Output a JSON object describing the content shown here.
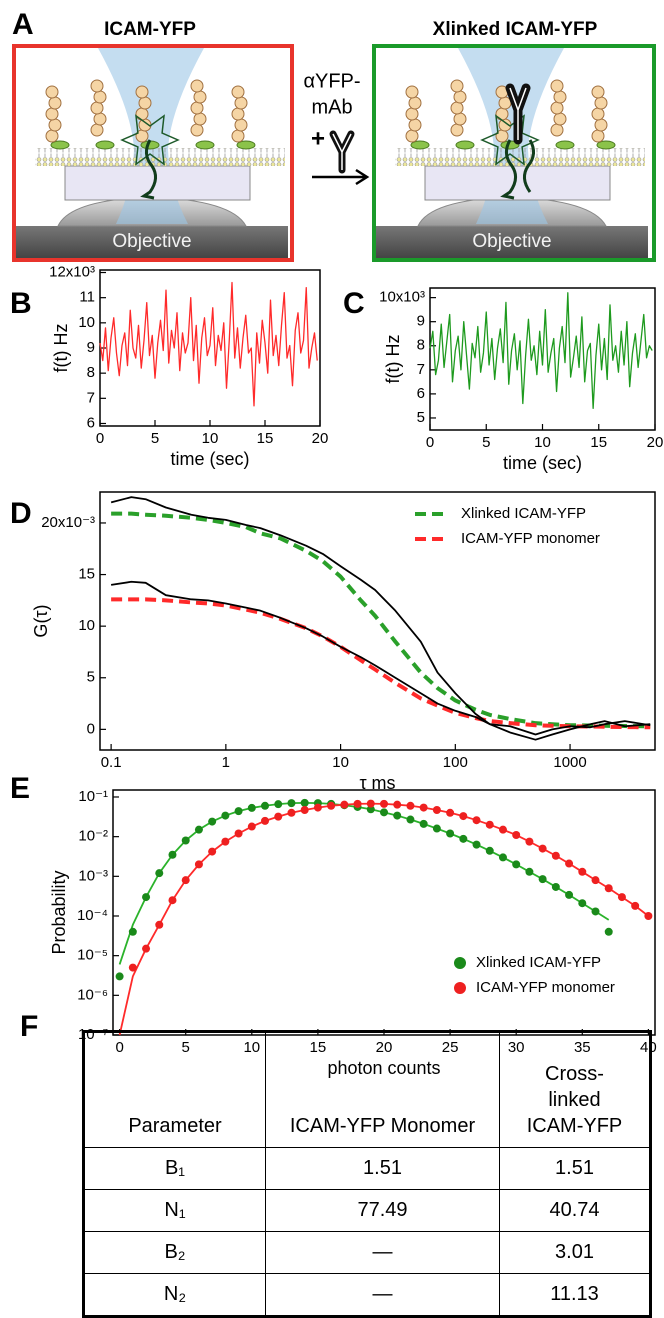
{
  "diagram": {
    "panel": "A",
    "left_title": "ICAM-YFP",
    "right_title": "Xlinked ICAM-YFP",
    "reagent_line1": "αYFP-",
    "reagent_line2": "mAb",
    "plus": "+",
    "left_objective": "Objective",
    "right_objective": "Objective"
  },
  "chart_data": [
    {
      "type": "line",
      "panel": "B",
      "xlabel": "time (sec)",
      "ylabel": "f(t) Hz",
      "x": [
        0,
        0.25,
        0.5,
        0.75,
        1,
        1.25,
        1.5,
        1.75,
        2,
        2.25,
        2.5,
        2.75,
        3,
        3.25,
        3.5,
        3.75,
        4,
        4.25,
        4.5,
        4.75,
        5,
        5.25,
        5.5,
        5.75,
        6,
        6.25,
        6.5,
        6.75,
        7,
        7.25,
        7.5,
        7.75,
        8,
        8.25,
        8.5,
        8.75,
        9,
        9.25,
        9.5,
        9.75,
        10,
        10.25,
        10.5,
        10.75,
        11,
        11.25,
        11.5,
        11.75,
        12,
        12.25,
        12.5,
        12.75,
        13,
        13.25,
        13.5,
        13.75,
        14,
        14.25,
        14.5,
        14.75,
        15,
        15.25,
        15.5,
        15.75,
        16,
        16.25,
        16.5,
        16.75,
        17,
        17.25,
        17.5,
        17.75,
        18,
        18.25,
        18.5,
        18.75,
        19,
        19.25,
        19.5,
        19.75
      ],
      "series": [
        {
          "color": "#ff2a2a",
          "style": "line",
          "values": [
            9.2,
            8.5,
            9.8,
            8.1,
            9.4,
            10.2,
            8.8,
            7.9,
            9.1,
            9.6,
            8.3,
            10.5,
            9,
            8.6,
            9.9,
            8.2,
            9.3,
            10.8,
            8.7,
            9.5,
            7.8,
            9.2,
            10.1,
            8.9,
            11.3,
            8.4,
            9.7,
            9,
            10.4,
            8.1,
            9.6,
            8.8,
            9.2,
            11,
            8.5,
            9.9,
            7.6,
            9.4,
            10.2,
            8.7,
            9.1,
            10.6,
            8.3,
            9.5,
            8.9,
            10,
            7.4,
            9.3,
            11.6,
            8.6,
            9.8,
            8.2,
            9.4,
            10.3,
            8.8,
            9,
            6.7,
            9.6,
            8.4,
            10.1,
            9.2,
            8,
            10.9,
            8.7,
            9.5,
            8.3,
            9.9,
            11.2,
            8.6,
            9.1,
            7.5,
            9.7,
            10.4,
            8.8,
            9.3,
            11.4,
            8.2,
            9,
            9.6,
            8.5
          ]
        }
      ],
      "xlim": [
        0,
        20
      ],
      "ylim": [
        5.9,
        12.1
      ],
      "xticks": [
        0,
        5,
        10,
        15,
        20
      ],
      "yticks": [
        6,
        7,
        8,
        9,
        10,
        11,
        {
          "value": 12,
          "label": "12x10³"
        }
      ]
    },
    {
      "type": "line",
      "panel": "C",
      "xlabel": "time (sec)",
      "ylabel": "f(t) Hz",
      "x": [
        0,
        0.25,
        0.5,
        0.75,
        1,
        1.25,
        1.5,
        1.75,
        2,
        2.25,
        2.5,
        2.75,
        3,
        3.25,
        3.5,
        3.75,
        4,
        4.25,
        4.5,
        4.75,
        5,
        5.25,
        5.5,
        5.75,
        6,
        6.25,
        6.5,
        6.75,
        7,
        7.25,
        7.5,
        7.75,
        8,
        8.25,
        8.5,
        8.75,
        9,
        9.25,
        9.5,
        9.75,
        10,
        10.25,
        10.5,
        10.75,
        11,
        11.25,
        11.5,
        11.75,
        12,
        12.25,
        12.5,
        12.75,
        13,
        13.25,
        13.5,
        13.75,
        14,
        14.25,
        14.5,
        14.75,
        15,
        15.25,
        15.5,
        15.75,
        16,
        16.25,
        16.5,
        16.75,
        17,
        17.25,
        17.5,
        17.75,
        18,
        18.25,
        18.5,
        18.75,
        19,
        19.25,
        19.5,
        19.75
      ],
      "series": [
        {
          "color": "#1e9a1e",
          "style": "line",
          "values": [
            7.9,
            8.6,
            6.8,
            7.4,
            8.9,
            7.1,
            8.2,
            9.3,
            6.5,
            7.8,
            8.4,
            7,
            9,
            7.6,
            6.2,
            8.1,
            7.5,
            8.8,
            6.9,
            7.7,
            9.4,
            7.2,
            8.3,
            6.6,
            7.9,
            8.7,
            7.3,
            9.8,
            6.4,
            7.8,
            8.5,
            7,
            8.2,
            5.6,
            7.6,
            9.1,
            7.4,
            8,
            6.8,
            8.6,
            7.2,
            9.5,
            6.9,
            7.7,
            8.3,
            6.1,
            7.9,
            8.8,
            7.3,
            10.2,
            6.7,
            7.5,
            8.4,
            7.1,
            9.2,
            6.5,
            7.8,
            8.1,
            5.4,
            7.6,
            8.9,
            7,
            8.3,
            6.6,
            9.7,
            7.4,
            8,
            6.9,
            8.6,
            7.2,
            9,
            6.3,
            7.7,
            8.5,
            7.1,
            8.2,
            9.3,
            7.5,
            8,
            7.8
          ]
        }
      ],
      "xlim": [
        0,
        20
      ],
      "ylim": [
        4.5,
        10.4
      ],
      "xticks": [
        0,
        5,
        10,
        15,
        20
      ],
      "yticks": [
        5,
        6,
        7,
        8,
        9,
        {
          "value": 10,
          "label": "10x10³"
        }
      ]
    },
    {
      "type": "line",
      "panel": "D",
      "xlabel": "τ ms",
      "ylabel": "G(τ)",
      "xlog": true,
      "legend": "upper right",
      "x": [
        0.1,
        0.15,
        0.2,
        0.3,
        0.5,
        0.7,
        1,
        1.5,
        2,
        3,
        5,
        7,
        10,
        15,
        20,
        30,
        50,
        70,
        100,
        150,
        200,
        300,
        500,
        700,
        1000,
        1500,
        2000,
        3000,
        5000
      ],
      "series": [
        {
          "name": "Xlinked ICAM-YFP",
          "color": "#2aa02a",
          "style": "dashed",
          "values": [
            20.9,
            20.9,
            20.8,
            20.7,
            20.5,
            20.3,
            20,
            19.6,
            19,
            18.5,
            17.3,
            16.3,
            14.8,
            12.5,
            11,
            8.5,
            5.5,
            4,
            2.8,
            1.9,
            1.4,
            1,
            0.6,
            0.5,
            0.4,
            0.38,
            0.35,
            0.32,
            0.3
          ]
        },
        {
          "name": "ICAM-YFP monomer",
          "color": "#ff2a2a",
          "style": "dashed",
          "values": [
            12.6,
            12.6,
            12.6,
            12.5,
            12.3,
            12.2,
            12,
            11.6,
            11.3,
            10.7,
            9.8,
            9,
            8,
            6.7,
            5.8,
            4.5,
            3,
            2.3,
            1.6,
            1.1,
            0.8,
            0.6,
            0.4,
            0.35,
            0.3,
            0.28,
            0.25,
            0.22,
            0.2
          ]
        },
        {
          "color": "#000000",
          "style": "line",
          "values": [
            22,
            22.5,
            22.3,
            21.5,
            20.8,
            20.5,
            20.3,
            19.8,
            19.5,
            18.8,
            17.8,
            17,
            15.8,
            14.5,
            13.5,
            11.5,
            8.5,
            5.5,
            3.5,
            1.5,
            0.5,
            -0.3,
            -1,
            -0.5,
            0,
            0.5,
            0.8,
            0.3,
            0.5
          ]
        },
        {
          "color": "#000000",
          "style": "line",
          "values": [
            14,
            14.3,
            14.2,
            13,
            12.6,
            12.5,
            12.2,
            11.8,
            11.5,
            10.8,
            9.8,
            9,
            8,
            7,
            6.2,
            5,
            3.5,
            2.5,
            1.8,
            1.2,
            0.5,
            0.3,
            -0.5,
            0,
            0.3,
            0.2,
            0.5,
            0.8,
            0.4
          ]
        }
      ],
      "xlim": [
        0.08,
        5500
      ],
      "ylim": [
        -2,
        23
      ],
      "xticks": [
        0.1,
        1,
        10,
        100,
        1000
      ],
      "yticks": [
        0,
        5,
        10,
        15,
        {
          "value": 20,
          "label": "20x10⁻³"
        }
      ]
    },
    {
      "type": "scatter",
      "panel": "E",
      "xlabel": "photon counts",
      "ylabel": "Probability",
      "ylog": true,
      "legend": "lower right",
      "series": [
        {
          "color": "#2bb32b",
          "style": "line",
          "x": [
            0,
            1,
            2,
            3,
            4,
            5,
            6,
            7,
            8,
            9,
            10,
            11,
            12,
            13,
            14,
            15,
            16,
            17,
            18,
            19,
            20,
            21,
            22,
            23,
            24,
            25,
            26,
            27,
            28,
            29,
            30,
            31,
            32,
            33,
            34,
            35,
            36,
            37
          ],
          "values": [
            6e-06,
            6e-05,
            0.0003,
            0.0012,
            0.0035,
            0.008,
            0.015,
            0.024,
            0.034,
            0.044,
            0.053,
            0.06,
            0.066,
            0.07,
            0.071,
            0.07,
            0.067,
            0.062,
            0.056,
            0.049,
            0.041,
            0.034,
            0.027,
            0.021,
            0.016,
            0.012,
            0.0088,
            0.0063,
            0.0044,
            0.003,
            0.002,
            0.0013,
            0.00085,
            0.00054,
            0.00034,
            0.00021,
            0.00013,
            8e-05
          ]
        },
        {
          "color": "#ff2a2a",
          "style": "line",
          "x": [
            0,
            1,
            2,
            3,
            4,
            5,
            6,
            7,
            8,
            9,
            10,
            11,
            12,
            13,
            14,
            15,
            16,
            17,
            18,
            19,
            20,
            21,
            22,
            23,
            24,
            25,
            26,
            27,
            28,
            29,
            30,
            31,
            32,
            33,
            34,
            35,
            36,
            37,
            38,
            39,
            40
          ],
          "values": [
            1e-07,
            3e-06,
            1.5e-05,
            6e-05,
            0.00025,
            0.0008,
            0.002,
            0.0042,
            0.0075,
            0.012,
            0.018,
            0.025,
            0.032,
            0.04,
            0.047,
            0.054,
            0.06,
            0.064,
            0.067,
            0.068,
            0.067,
            0.064,
            0.06,
            0.054,
            0.047,
            0.04,
            0.033,
            0.026,
            0.02,
            0.015,
            0.011,
            0.0075,
            0.005,
            0.0033,
            0.0021,
            0.0013,
            0.0008,
            0.0005,
            0.0003,
            0.00018,
            0.0001
          ]
        },
        {
          "name": "Xlinked ICAM-YFP",
          "color": "#1a8a1a",
          "style": "points",
          "x": [
            0,
            1,
            2,
            3,
            4,
            5,
            6,
            7,
            8,
            9,
            10,
            11,
            12,
            13,
            14,
            15,
            16,
            17,
            18,
            19,
            20,
            21,
            22,
            23,
            24,
            25,
            26,
            27,
            28,
            29,
            30,
            31,
            32,
            33,
            34,
            35,
            36,
            37
          ],
          "values": [
            3e-06,
            4e-05,
            0.0003,
            0.0012,
            0.0035,
            0.008,
            0.015,
            0.024,
            0.034,
            0.044,
            0.053,
            0.06,
            0.066,
            0.07,
            0.071,
            0.07,
            0.067,
            0.062,
            0.056,
            0.049,
            0.041,
            0.034,
            0.027,
            0.021,
            0.016,
            0.012,
            0.0088,
            0.0063,
            0.0044,
            0.003,
            0.002,
            0.0013,
            0.00085,
            0.00054,
            0.00034,
            0.00021,
            0.00013,
            4e-05
          ]
        },
        {
          "name": "ICAM-YFP monomer",
          "color": "#ee2020",
          "style": "points",
          "x": [
            1,
            2,
            3,
            4,
            5,
            6,
            7,
            8,
            9,
            10,
            11,
            12,
            13,
            14,
            15,
            16,
            17,
            18,
            19,
            20,
            21,
            22,
            23,
            24,
            25,
            26,
            27,
            28,
            29,
            30,
            31,
            32,
            33,
            34,
            35,
            36,
            37,
            38,
            39,
            40
          ],
          "values": [
            5e-06,
            1.5e-05,
            6e-05,
            0.00025,
            0.0008,
            0.002,
            0.0042,
            0.0075,
            0.012,
            0.018,
            0.025,
            0.032,
            0.04,
            0.047,
            0.054,
            0.06,
            0.064,
            0.067,
            0.068,
            0.067,
            0.064,
            0.06,
            0.054,
            0.047,
            0.04,
            0.033,
            0.026,
            0.02,
            0.015,
            0.011,
            0.0075,
            0.005,
            0.0033,
            0.0021,
            0.0013,
            0.0008,
            0.0005,
            0.0003,
            0.00018,
            0.0001
          ]
        }
      ],
      "xlim": [
        -0.5,
        40.5
      ],
      "ylim": [
        1e-07,
        0.15
      ],
      "xticks": [
        0,
        5,
        10,
        15,
        20,
        25,
        30,
        35,
        40
      ],
      "yticks": [
        {
          "value": 1e-07,
          "label": "10⁻⁷"
        },
        {
          "value": 1e-06,
          "label": "10⁻⁶"
        },
        {
          "value": 1e-05,
          "label": "10⁻⁵"
        },
        {
          "value": 0.0001,
          "label": "10⁻⁴"
        },
        {
          "value": 0.001,
          "label": "10⁻³"
        },
        {
          "value": 0.01,
          "label": "10⁻²"
        },
        {
          "value": 0.1,
          "label": "10⁻¹"
        }
      ]
    }
  ],
  "table": {
    "panel": "F",
    "header": [
      "Parameter",
      "ICAM-YFP Monomer",
      "Cross-linked ICAM-YFP"
    ],
    "rows": [
      [
        "B₁",
        "1.51",
        "1.51"
      ],
      [
        "N₁",
        "77.49",
        "40.74"
      ],
      [
        "B₂",
        "—",
        "3.01"
      ],
      [
        "N₂",
        "—",
        "11.13"
      ]
    ]
  }
}
